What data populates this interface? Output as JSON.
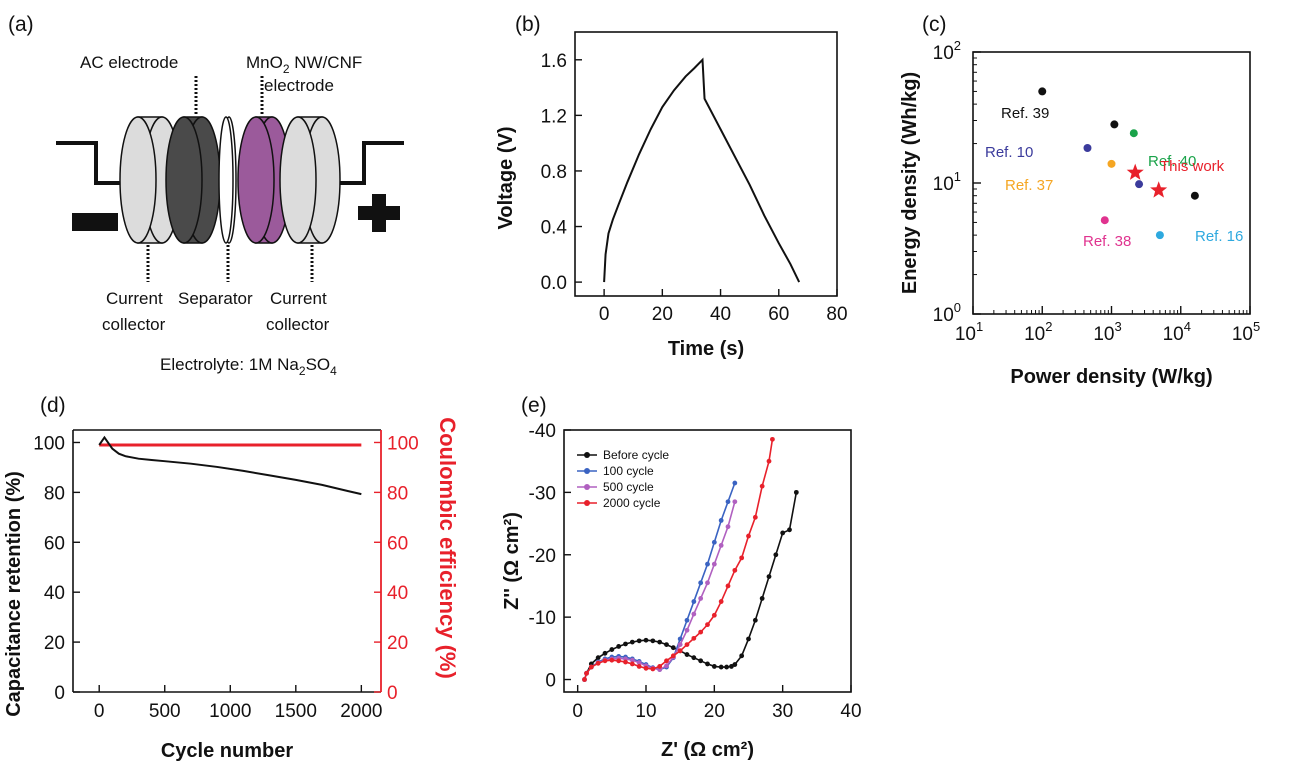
{
  "colors": {
    "black": "#111111",
    "red": "#e8212b",
    "blue": "#3a63c2",
    "purple": "#b060c0",
    "green": "#1aa34a",
    "orange": "#f5a623",
    "navy": "#3b3b9c",
    "pink": "#e0338f",
    "cyan": "#2ea9df",
    "mno2": "#9b5a9b",
    "ac": "#4a4a4a",
    "collector": "#dcdcdc"
  },
  "schematic": {
    "panel_label": "(a)",
    "ac_electrode": "AC electrode",
    "mno2_line1": "MnO",
    "mno2_sub": "2",
    "mno2_line1_rest": " NW/CNF",
    "mno2_line2": "electrode",
    "current_collector_left_1": "Current",
    "current_collector_left_2": "collector",
    "separator": "Separator",
    "current_collector_right_1": "Current",
    "current_collector_right_2": "collector",
    "electrolyte_prefix": "Electrolyte: 1M Na",
    "electrolyte_sub1": "2",
    "electrolyte_mid": "SO",
    "electrolyte_sub2": "4"
  },
  "chart_data": [
    {
      "panel": "(b)",
      "type": "line",
      "xlabel": "Time (s)",
      "ylabel": "Voltage (V)",
      "xlim": [
        -10,
        80
      ],
      "ylim": [
        -0.1,
        1.8
      ],
      "xticks": [
        0,
        20,
        40,
        60,
        80
      ],
      "yticks": [
        "0.0",
        "0.4",
        "0.8",
        "1.2",
        "1.6"
      ],
      "series": [
        {
          "x": [
            0,
            0.5,
            1.5,
            3,
            5,
            8,
            12,
            16,
            20,
            24,
            28,
            31,
            33.8,
            34.5,
            40,
            45,
            50,
            55,
            60,
            64,
            67
          ],
          "y": [
            0,
            0.2,
            0.35,
            0.45,
            0.56,
            0.72,
            0.92,
            1.1,
            1.26,
            1.38,
            1.48,
            1.54,
            1.6,
            1.32,
            1.1,
            0.9,
            0.7,
            0.48,
            0.28,
            0.13,
            0
          ]
        }
      ]
    },
    {
      "panel": "(c)",
      "type": "scatter",
      "xlabel": "Power density (W/kg)",
      "ylabel": "Energy density (Wh/kg)",
      "xscale": "log",
      "yscale": "log",
      "xlim": [
        10,
        100000
      ],
      "ylim": [
        1,
        100
      ],
      "xticks": [
        {
          "v": 10,
          "base": "10",
          "exp": "1"
        },
        {
          "v": 100,
          "base": "10",
          "exp": "2"
        },
        {
          "v": 1000,
          "base": "10",
          "exp": "3"
        },
        {
          "v": 10000,
          "base": "10",
          "exp": "4"
        },
        {
          "v": 100000,
          "base": "10",
          "exp": "5"
        }
      ],
      "yticks": [
        {
          "v": 1,
          "base": "10",
          "exp": "0"
        },
        {
          "v": 10,
          "base": "10",
          "exp": "1"
        },
        {
          "v": 100,
          "base": "10",
          "exp": "2"
        }
      ],
      "points": [
        {
          "x": 100,
          "y": 50,
          "color": "#111111",
          "marker": "circle"
        },
        {
          "x": 1100,
          "y": 28,
          "color": "#111111",
          "marker": "circle"
        },
        {
          "x": 16000,
          "y": 8.0,
          "color": "#111111",
          "marker": "circle"
        },
        {
          "x": 2100,
          "y": 24,
          "color": "#1aa34a",
          "marker": "circle"
        },
        {
          "x": 450,
          "y": 18.5,
          "color": "#3b3b9c",
          "marker": "circle"
        },
        {
          "x": 1000,
          "y": 14,
          "color": "#f5a623",
          "marker": "circle"
        },
        {
          "x": 2500,
          "y": 9.8,
          "color": "#3b3b9c",
          "marker": "circle"
        },
        {
          "x": 800,
          "y": 5.2,
          "color": "#e0338f",
          "marker": "circle"
        },
        {
          "x": 5000,
          "y": 4.0,
          "color": "#2ea9df",
          "marker": "circle"
        },
        {
          "x": 2200,
          "y": 12,
          "color": "#e8212b",
          "marker": "star"
        },
        {
          "x": 4800,
          "y": 8.8,
          "color": "#e8212b",
          "marker": "star"
        }
      ],
      "annotations": [
        {
          "text": "Ref. 39",
          "color": "#111111"
        },
        {
          "text": "Ref. 40",
          "color": "#1aa34a"
        },
        {
          "text": "Ref. 10",
          "color": "#3b3b9c"
        },
        {
          "text": "This work",
          "color": "#e8212b"
        },
        {
          "text": "Ref. 37",
          "color": "#f5a623"
        },
        {
          "text": "Ref. 38",
          "color": "#e0338f"
        },
        {
          "text": "Ref. 16",
          "color": "#2ea9df"
        }
      ]
    },
    {
      "panel": "(d)",
      "type": "line",
      "xlabel": "Cycle number",
      "ylabel": "Capacitance retention (%)",
      "y2label": "Coulombic efficiency (%)",
      "xlim": [
        -200,
        2150
      ],
      "ylim": [
        0,
        105
      ],
      "xticks": [
        0,
        500,
        1000,
        1500,
        2000
      ],
      "yticks": [
        0,
        20,
        40,
        60,
        80,
        100
      ],
      "series": [
        {
          "name": "Capacitance retention",
          "axis": "left",
          "x": [
            0,
            20,
            40,
            60,
            80,
            100,
            150,
            200,
            300,
            400,
            500,
            700,
            900,
            1100,
            1300,
            1500,
            1700,
            1900,
            2000
          ],
          "y": [
            99,
            100.5,
            102,
            100.5,
            99,
            97.5,
            95.5,
            94.5,
            93.5,
            93,
            92.5,
            91.5,
            90.2,
            88.6,
            86.8,
            85,
            83,
            80.5,
            79.3
          ]
        },
        {
          "name": "Coulombic efficiency",
          "axis": "right",
          "x": [
            0,
            2000
          ],
          "y": [
            99,
            99
          ]
        }
      ]
    },
    {
      "panel": "(e)",
      "type": "line",
      "xlabel": "Z' (Ω cm²)",
      "ylabel": "Z'' (Ω cm²)",
      "xlim": [
        -2,
        40
      ],
      "ylim": [
        -40,
        2
      ],
      "xticks": [
        0,
        10,
        20,
        30,
        40
      ],
      "yticks": [
        -40,
        -30,
        -20,
        -10,
        0
      ],
      "series": [
        {
          "name": "Before cycle",
          "x": [
            1,
            1.3,
            2,
            3,
            4,
            5,
            6,
            7,
            8,
            9,
            10,
            11,
            12,
            13,
            14,
            15,
            16,
            17,
            18,
            19,
            20,
            21,
            21.8,
            22.5,
            23,
            24,
            25,
            26,
            27,
            28,
            29,
            30,
            31,
            32
          ],
          "y": [
            0,
            -1,
            -2.5,
            -3.5,
            -4.2,
            -4.8,
            -5.3,
            -5.7,
            -6,
            -6.2,
            -6.3,
            -6.2,
            -6,
            -5.6,
            -5.1,
            -4.6,
            -4,
            -3.5,
            -3,
            -2.5,
            -2.1,
            -2,
            -2,
            -2.1,
            -2.4,
            -3.8,
            -6.5,
            -9.5,
            -13,
            -16.5,
            -20,
            -23.5,
            -24,
            -30
          ]
        },
        {
          "name": "100 cycle",
          "x": [
            1,
            1.3,
            2,
            3,
            4,
            5,
            6,
            7,
            8,
            9,
            10,
            11,
            12,
            13,
            14,
            15,
            16,
            17,
            18,
            19,
            20,
            21,
            22,
            23
          ],
          "y": [
            0,
            -1,
            -2,
            -2.8,
            -3.3,
            -3.6,
            -3.7,
            -3.6,
            -3.3,
            -2.9,
            -2.4,
            -1.9,
            -1.6,
            -2,
            -3.5,
            -6.5,
            -9.5,
            -12.5,
            -15.5,
            -18.5,
            -22,
            -25.5,
            -28.5,
            -31.5
          ]
        },
        {
          "name": "500 cycle",
          "x": [
            1,
            1.3,
            2,
            3,
            4,
            5,
            6,
            7,
            8,
            9,
            10,
            11,
            12,
            13,
            14,
            15,
            16,
            17,
            18,
            19,
            20,
            21,
            22,
            23
          ],
          "y": [
            0,
            -1,
            -2,
            -2.7,
            -3.1,
            -3.3,
            -3.4,
            -3.3,
            -3.1,
            -2.7,
            -2.2,
            -1.8,
            -1.6,
            -2.2,
            -3.6,
            -5.6,
            -7.9,
            -10.5,
            -13,
            -15.5,
            -18.5,
            -21.5,
            -24.5,
            -28.5
          ]
        },
        {
          "name": "2000 cycle",
          "x": [
            1,
            1.3,
            2,
            3,
            4,
            5,
            6,
            7,
            8,
            9,
            10,
            11,
            12,
            13,
            14,
            15,
            16,
            17,
            18,
            19,
            20,
            21,
            22,
            23,
            24,
            25,
            26,
            27,
            28,
            28.5
          ],
          "y": [
            0,
            -1,
            -2,
            -2.6,
            -3,
            -3.1,
            -3,
            -2.8,
            -2.5,
            -2.1,
            -1.8,
            -1.7,
            -2.1,
            -3,
            -3.8,
            -4.6,
            -5.6,
            -6.6,
            -7.6,
            -8.8,
            -10.3,
            -12.5,
            -15,
            -17.5,
            -19.5,
            -23,
            -26,
            -31,
            -35,
            -38.5
          ]
        }
      ]
    }
  ]
}
